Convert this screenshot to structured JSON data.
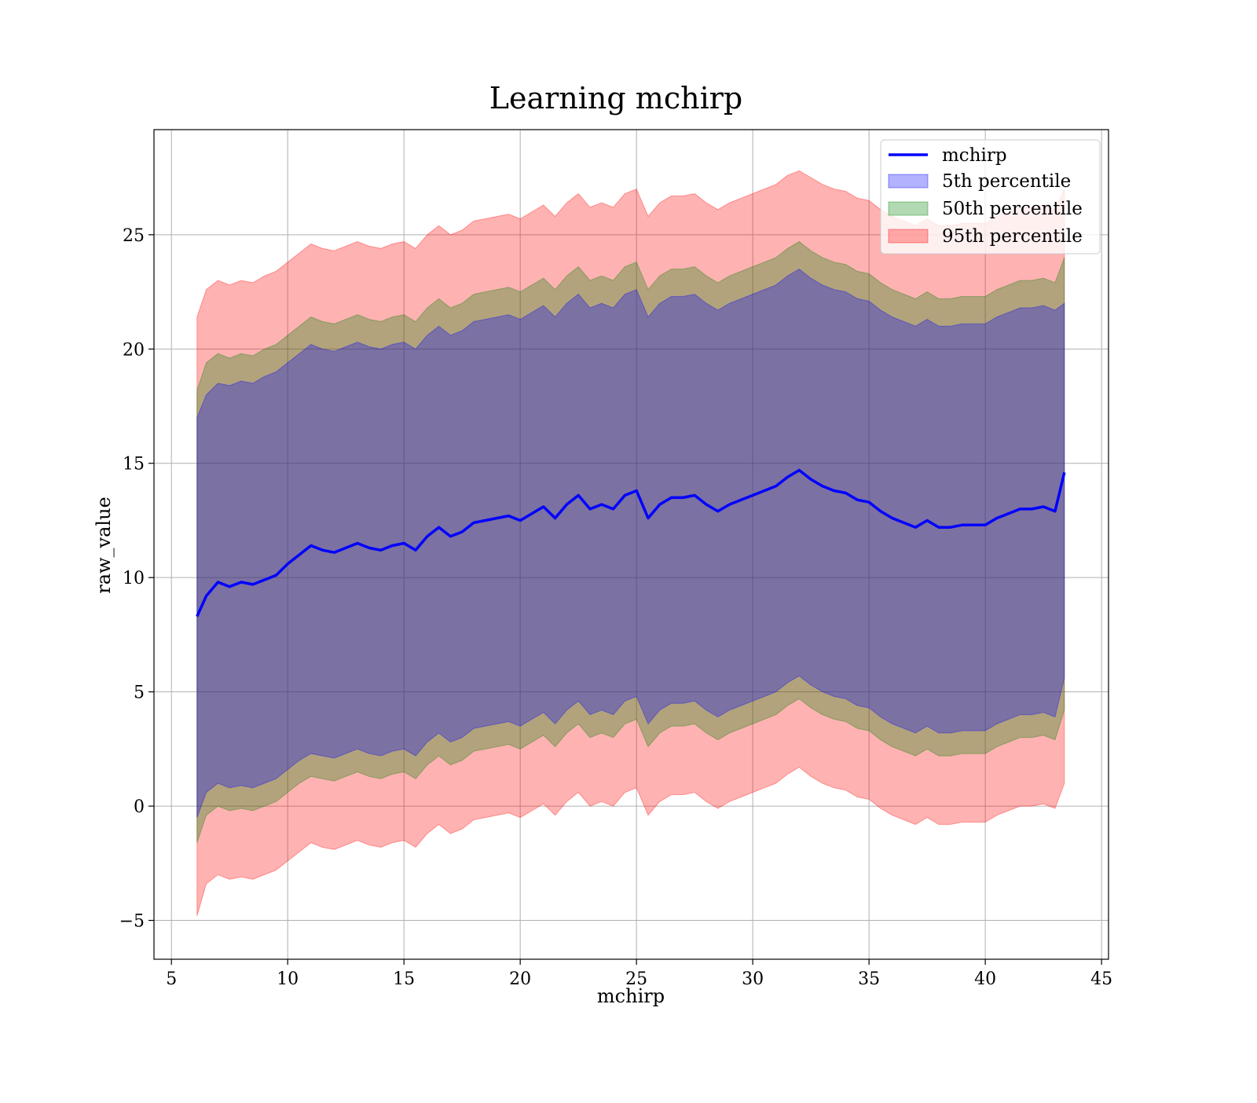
{
  "chart_data": {
    "type": "area",
    "title": "Learning mchirp",
    "xlabel": "mchirp",
    "ylabel": "raw_value",
    "xlim": [
      4.25,
      45.3
    ],
    "ylim": [
      -6.7,
      29.6
    ],
    "xticks": [
      5,
      10,
      15,
      20,
      25,
      30,
      35,
      40,
      45
    ],
    "yticks": [
      -5,
      0,
      5,
      10,
      15,
      20,
      25
    ],
    "xtick_labels": [
      "5",
      "10",
      "15",
      "20",
      "25",
      "30",
      "35",
      "40",
      "45"
    ],
    "ytick_labels": [
      "−5",
      "0",
      "5",
      "10",
      "15",
      "20",
      "25"
    ],
    "grid": true,
    "legend": "top-right",
    "x": [
      6.1,
      6.5,
      7.0,
      7.5,
      8.0,
      8.5,
      9.0,
      9.5,
      10.0,
      10.5,
      11.0,
      11.5,
      12.0,
      12.5,
      13.0,
      13.5,
      14.0,
      14.5,
      15.0,
      15.5,
      16.0,
      16.5,
      17.0,
      17.5,
      18.0,
      18.5,
      19.0,
      19.5,
      20.0,
      20.5,
      21.0,
      21.5,
      22.0,
      22.5,
      23.0,
      23.5,
      24.0,
      24.5,
      25.0,
      25.5,
      26.0,
      26.5,
      27.0,
      27.5,
      28.0,
      28.5,
      29.0,
      29.5,
      30.0,
      30.5,
      31.0,
      31.5,
      32.0,
      32.5,
      33.0,
      33.5,
      34.0,
      34.5,
      35.0,
      35.5,
      36.0,
      36.5,
      37.0,
      37.5,
      38.0,
      38.5,
      39.0,
      39.5,
      40.0,
      40.5,
      41.0,
      41.5,
      42.0,
      42.5,
      43.0,
      43.4
    ],
    "line": {
      "name": "mchirp",
      "color": "#0000ff",
      "values": [
        8.3,
        9.2,
        9.8,
        9.6,
        9.8,
        9.7,
        9.9,
        10.1,
        10.6,
        11.0,
        11.4,
        11.2,
        11.1,
        11.3,
        11.5,
        11.3,
        11.2,
        11.4,
        11.5,
        11.2,
        11.8,
        12.2,
        11.8,
        12.0,
        12.4,
        12.5,
        12.6,
        12.7,
        12.5,
        12.8,
        13.1,
        12.6,
        13.2,
        13.6,
        13.0,
        13.2,
        13.0,
        13.6,
        13.8,
        12.6,
        13.2,
        13.5,
        13.5,
        13.6,
        13.2,
        12.9,
        13.2,
        13.4,
        13.6,
        13.8,
        14.0,
        14.4,
        14.7,
        14.3,
        14.0,
        13.8,
        13.7,
        13.4,
        13.3,
        12.9,
        12.6,
        12.4,
        12.2,
        12.5,
        12.2,
        12.2,
        12.3,
        12.3,
        12.3,
        12.6,
        12.8,
        13.0,
        13.0,
        13.1,
        12.9,
        14.6
      ]
    },
    "series": [
      {
        "name": "5th percentile",
        "color": "#0000ff",
        "opacity": 0.3,
        "lower": [
          -0.5,
          0.6,
          1.0,
          0.8,
          0.9,
          0.8,
          1.0,
          1.2,
          1.6,
          2.0,
          2.3,
          2.2,
          2.1,
          2.3,
          2.5,
          2.3,
          2.2,
          2.4,
          2.5,
          2.2,
          2.8,
          3.2,
          2.8,
          3.0,
          3.4,
          3.5,
          3.6,
          3.7,
          3.5,
          3.8,
          4.1,
          3.6,
          4.2,
          4.6,
          4.0,
          4.2,
          4.0,
          4.6,
          4.8,
          3.6,
          4.2,
          4.5,
          4.5,
          4.6,
          4.2,
          3.9,
          4.2,
          4.4,
          4.6,
          4.8,
          5.0,
          5.4,
          5.7,
          5.3,
          5.0,
          4.8,
          4.7,
          4.4,
          4.3,
          3.9,
          3.6,
          3.4,
          3.2,
          3.5,
          3.2,
          3.2,
          3.3,
          3.3,
          3.3,
          3.6,
          3.8,
          4.0,
          4.0,
          4.1,
          3.9,
          5.6
        ],
        "upper": [
          17.0,
          18.0,
          18.5,
          18.4,
          18.6,
          18.5,
          18.8,
          19.0,
          19.4,
          19.8,
          20.2,
          20.0,
          19.9,
          20.1,
          20.3,
          20.1,
          20.0,
          20.2,
          20.3,
          20.0,
          20.6,
          21.0,
          20.6,
          20.8,
          21.2,
          21.3,
          21.4,
          21.5,
          21.3,
          21.6,
          21.9,
          21.4,
          22.0,
          22.4,
          21.8,
          22.0,
          21.8,
          22.4,
          22.6,
          21.4,
          22.0,
          22.3,
          22.3,
          22.4,
          22.0,
          21.7,
          22.0,
          22.2,
          22.4,
          22.6,
          22.8,
          23.2,
          23.5,
          23.1,
          22.8,
          22.6,
          22.5,
          22.2,
          22.1,
          21.7,
          21.4,
          21.2,
          21.0,
          21.3,
          21.0,
          21.0,
          21.1,
          21.1,
          21.1,
          21.4,
          21.6,
          21.8,
          21.8,
          21.9,
          21.7,
          22.0
        ]
      },
      {
        "name": "50th percentile",
        "color": "#008000",
        "opacity": 0.3,
        "lower": [
          -1.6,
          -0.4,
          0.0,
          -0.2,
          -0.1,
          -0.2,
          0.0,
          0.2,
          0.6,
          1.0,
          1.3,
          1.2,
          1.1,
          1.3,
          1.5,
          1.3,
          1.2,
          1.4,
          1.5,
          1.2,
          1.8,
          2.2,
          1.8,
          2.0,
          2.4,
          2.5,
          2.6,
          2.7,
          2.5,
          2.8,
          3.1,
          2.6,
          3.2,
          3.6,
          3.0,
          3.2,
          3.0,
          3.6,
          3.8,
          2.6,
          3.2,
          3.5,
          3.5,
          3.6,
          3.2,
          2.9,
          3.2,
          3.4,
          3.6,
          3.8,
          4.0,
          4.4,
          4.7,
          4.3,
          4.0,
          3.8,
          3.7,
          3.4,
          3.3,
          2.9,
          2.6,
          2.4,
          2.2,
          2.5,
          2.2,
          2.2,
          2.3,
          2.3,
          2.3,
          2.6,
          2.8,
          3.0,
          3.0,
          3.1,
          2.9,
          4.2
        ],
        "upper": [
          18.2,
          19.4,
          19.8,
          19.6,
          19.8,
          19.7,
          20.0,
          20.2,
          20.6,
          21.0,
          21.4,
          21.2,
          21.1,
          21.3,
          21.5,
          21.3,
          21.2,
          21.4,
          21.5,
          21.2,
          21.8,
          22.2,
          21.8,
          22.0,
          22.4,
          22.5,
          22.6,
          22.7,
          22.5,
          22.8,
          23.1,
          22.6,
          23.2,
          23.6,
          23.0,
          23.2,
          23.0,
          23.6,
          23.8,
          22.6,
          23.2,
          23.5,
          23.5,
          23.6,
          23.2,
          22.9,
          23.2,
          23.4,
          23.6,
          23.8,
          24.0,
          24.4,
          24.7,
          24.3,
          24.0,
          23.8,
          23.7,
          23.4,
          23.3,
          22.9,
          22.6,
          22.4,
          22.2,
          22.5,
          22.2,
          22.2,
          22.3,
          22.3,
          22.3,
          22.6,
          22.8,
          23.0,
          23.0,
          23.1,
          22.9,
          24.0
        ]
      },
      {
        "name": "95th percentile",
        "color": "#ff0000",
        "opacity": 0.3,
        "lower": [
          -4.8,
          -3.4,
          -3.0,
          -3.2,
          -3.1,
          -3.2,
          -3.0,
          -2.8,
          -2.4,
          -2.0,
          -1.6,
          -1.8,
          -1.9,
          -1.7,
          -1.5,
          -1.7,
          -1.8,
          -1.6,
          -1.5,
          -1.8,
          -1.2,
          -0.8,
          -1.2,
          -1.0,
          -0.6,
          -0.5,
          -0.4,
          -0.3,
          -0.5,
          -0.2,
          0.1,
          -0.4,
          0.2,
          0.6,
          0.0,
          0.2,
          0.0,
          0.6,
          0.8,
          -0.4,
          0.2,
          0.5,
          0.5,
          0.6,
          0.2,
          -0.1,
          0.2,
          0.4,
          0.6,
          0.8,
          1.0,
          1.4,
          1.7,
          1.3,
          1.0,
          0.8,
          0.7,
          0.4,
          0.3,
          -0.1,
          -0.4,
          -0.6,
          -0.8,
          -0.5,
          -0.8,
          -0.8,
          -0.7,
          -0.7,
          -0.7,
          -0.4,
          -0.2,
          0.0,
          0.0,
          0.1,
          -0.1,
          1.0
        ],
        "upper": [
          21.4,
          22.6,
          23.0,
          22.8,
          23.0,
          22.9,
          23.2,
          23.4,
          23.8,
          24.2,
          24.6,
          24.4,
          24.3,
          24.5,
          24.7,
          24.5,
          24.4,
          24.6,
          24.7,
          24.4,
          25.0,
          25.4,
          25.0,
          25.2,
          25.6,
          25.7,
          25.8,
          25.9,
          25.7,
          26.0,
          26.3,
          25.8,
          26.4,
          26.8,
          26.2,
          26.4,
          26.2,
          26.8,
          27.0,
          25.8,
          26.4,
          26.7,
          26.7,
          26.8,
          26.4,
          26.1,
          26.4,
          26.6,
          26.8,
          27.0,
          27.2,
          27.6,
          27.8,
          27.5,
          27.2,
          27.0,
          26.9,
          26.6,
          26.5,
          26.1,
          25.8,
          25.6,
          25.4,
          25.7,
          25.4,
          25.4,
          25.5,
          25.5,
          25.5,
          25.8,
          26.0,
          26.2,
          26.2,
          26.3,
          26.1,
          27.0
        ]
      }
    ]
  }
}
